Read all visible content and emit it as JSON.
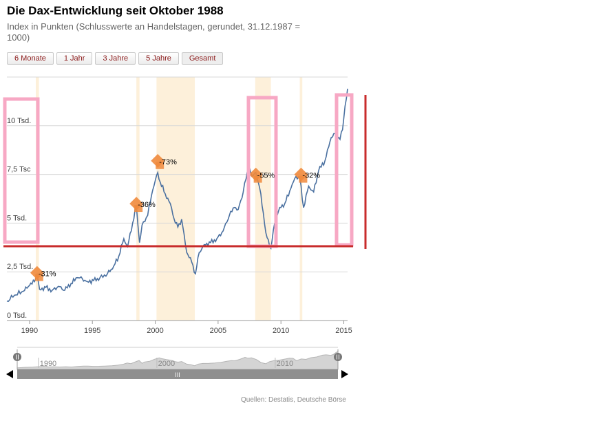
{
  "header": {
    "title": "Die Dax-Entwicklung seit Oktober 1988",
    "subtitle": "Index in Punkten (Schlusswerte an Handelstagen, gerundet, 31.12.1987 = 1000)"
  },
  "range_buttons": [
    "6 Monate",
    "1 Jahr",
    "3 Jahre",
    "5 Jahre",
    "Gesamt"
  ],
  "source": "Quellen: Destatis, Deutsche Börse",
  "navigator": {
    "labels": [
      "1990",
      "2000",
      "2010"
    ],
    "handle_glyph": "III"
  },
  "colors": {
    "line": "#4a70a0",
    "crisis_band": "#fdf0da",
    "grid": "#d8d8d8",
    "marker": "#f08a3c",
    "highlight_box": "#f7a8c4",
    "threshold_line": "#c82b2b"
  },
  "chart_data": {
    "type": "line",
    "title": "Die Dax-Entwicklung seit Oktober 1988",
    "xlabel": "",
    "ylabel": "Index in Punkten",
    "xlim": [
      1988.2,
      2015.3
    ],
    "ylim": [
      0,
      12500
    ],
    "y_ticks": [
      {
        "value": 0,
        "label": "0 Tsd."
      },
      {
        "value": 2500,
        "label": "2,5 Tsd."
      },
      {
        "value": 5000,
        "label": "5 Tsd."
      },
      {
        "value": 7500,
        "label": "7,5 Tsc"
      },
      {
        "value": 10000,
        "label": "10 Tsd."
      }
    ],
    "x_ticks": [
      1990,
      1995,
      2000,
      2005,
      2010,
      2015
    ],
    "crisis_periods": [
      [
        1990.5,
        1990.75
      ],
      [
        1998.5,
        1998.75
      ],
      [
        2000.1,
        2003.15
      ],
      [
        2007.95,
        2009.2
      ],
      [
        2011.5,
        2011.7
      ]
    ],
    "drawdowns": [
      {
        "label": "-31%",
        "x": 1990.6,
        "y": 2450
      },
      {
        "label": "-36%",
        "x": 1998.5,
        "y": 6000
      },
      {
        "label": "-73%",
        "x": 2000.2,
        "y": 8200
      },
      {
        "label": "-55%",
        "x": 2008.0,
        "y": 7500
      },
      {
        "label": "-32%",
        "x": 2011.6,
        "y": 7500
      }
    ],
    "series": [
      {
        "name": "DAX",
        "x": [
          1988.2,
          1988.8,
          1989.5,
          1990.0,
          1990.4,
          1990.6,
          1990.8,
          1991.3,
          1991.8,
          1992.3,
          1992.8,
          1993.3,
          1993.8,
          1994.2,
          1994.6,
          1995.1,
          1995.6,
          1996.2,
          1996.7,
          1997.1,
          1997.5,
          1997.8,
          1998.2,
          1998.5,
          1998.75,
          1998.95,
          1999.4,
          1999.8,
          2000.2,
          2000.4,
          2000.8,
          2001.2,
          2001.6,
          2001.8,
          2002.1,
          2002.5,
          2002.9,
          2003.2,
          2003.5,
          2003.9,
          2004.4,
          2004.9,
          2005.4,
          2005.9,
          2006.3,
          2006.6,
          2007.0,
          2007.45,
          2007.7,
          2008.0,
          2008.4,
          2008.8,
          2009.2,
          2009.5,
          2009.9,
          2010.3,
          2010.8,
          2011.2,
          2011.5,
          2011.8,
          2012.2,
          2012.6,
          2013.0,
          2013.5,
          2014.0,
          2014.3,
          2014.7,
          2014.9,
          2015.1,
          2015.3
        ],
        "values": [
          1000,
          1300,
          1500,
          1800,
          2000,
          2350,
          1600,
          1700,
          1550,
          1750,
          1550,
          1900,
          2200,
          2150,
          2000,
          2050,
          2200,
          2400,
          2800,
          3300,
          4200,
          3800,
          5000,
          5900,
          4000,
          4900,
          5400,
          6700,
          7600,
          7100,
          6500,
          6000,
          5000,
          4800,
          5200,
          3500,
          3000,
          2400,
          3500,
          3900,
          4000,
          4200,
          4600,
          5400,
          5800,
          5700,
          6600,
          8000,
          7400,
          7600,
          6500,
          4500,
          3700,
          5000,
          5800,
          6000,
          6800,
          7400,
          7300,
          5800,
          6900,
          6600,
          7700,
          8200,
          9400,
          9600,
          9300,
          9800,
          11000,
          11900
        ]
      }
    ]
  }
}
